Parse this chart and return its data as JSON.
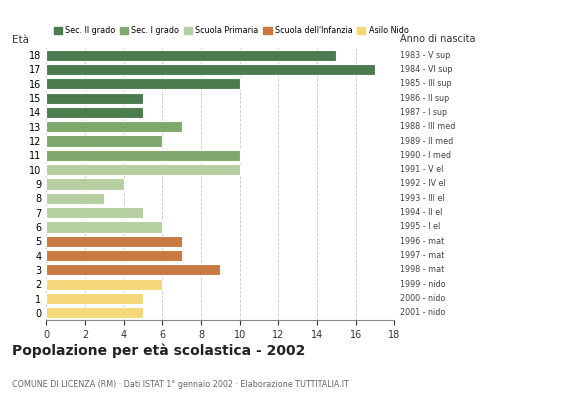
{
  "ages": [
    18,
    17,
    16,
    15,
    14,
    13,
    12,
    11,
    10,
    9,
    8,
    7,
    6,
    5,
    4,
    3,
    2,
    1,
    0
  ],
  "values": [
    15,
    17,
    10,
    5,
    5,
    7,
    6,
    10,
    10,
    4,
    3,
    5,
    6,
    7,
    7,
    9,
    6,
    5,
    5
  ],
  "colors": [
    "#4a7c4e",
    "#4a7c4e",
    "#4a7c4e",
    "#4a7c4e",
    "#4a7c4e",
    "#7fa86e",
    "#7fa86e",
    "#7fa86e",
    "#b5cfa0",
    "#b5cfa0",
    "#b5cfa0",
    "#b5cfa0",
    "#b5cfa0",
    "#c87941",
    "#c87941",
    "#c87941",
    "#f5d87a",
    "#f5d87a",
    "#f5d87a"
  ],
  "right_labels": [
    "1983 - V sup",
    "1984 - VI sup",
    "1985 - III sup",
    "1986 - II sup",
    "1987 - I sup",
    "1988 - III med",
    "1989 - II med",
    "1990 - I med",
    "1991 - V el",
    "1992 - IV el",
    "1993 - III el",
    "1994 - II el",
    "1995 - I el",
    "1996 - mat",
    "1997 - mat",
    "1998 - mat",
    "1999 - nido",
    "2000 - nido",
    "2001 - nido"
  ],
  "legend_labels": [
    "Sec. II grado",
    "Sec. I grado",
    "Scuola Primaria",
    "Scuola dell'Infanzia",
    "Asilo Nido"
  ],
  "legend_colors": [
    "#4a7c4e",
    "#7fa86e",
    "#b5cfa0",
    "#c87941",
    "#f5d87a"
  ],
  "title": "Popolazione per età scolastica - 2002",
  "subtitle": "COMUNE DI LICENZA (RM) · Dati ISTAT 1° gennaio 2002 · Elaborazione TUTTITALIA.IT",
  "ylabel": "Età",
  "xlabel_right": "Anno di nascita",
  "xlim": [
    0,
    18
  ],
  "xticks": [
    0,
    2,
    4,
    6,
    8,
    10,
    12,
    14,
    16,
    18
  ],
  "background_color": "#ffffff",
  "bar_edge_color": "#ffffff",
  "grid_color": "#bbbbbb",
  "bar_height": 0.78
}
